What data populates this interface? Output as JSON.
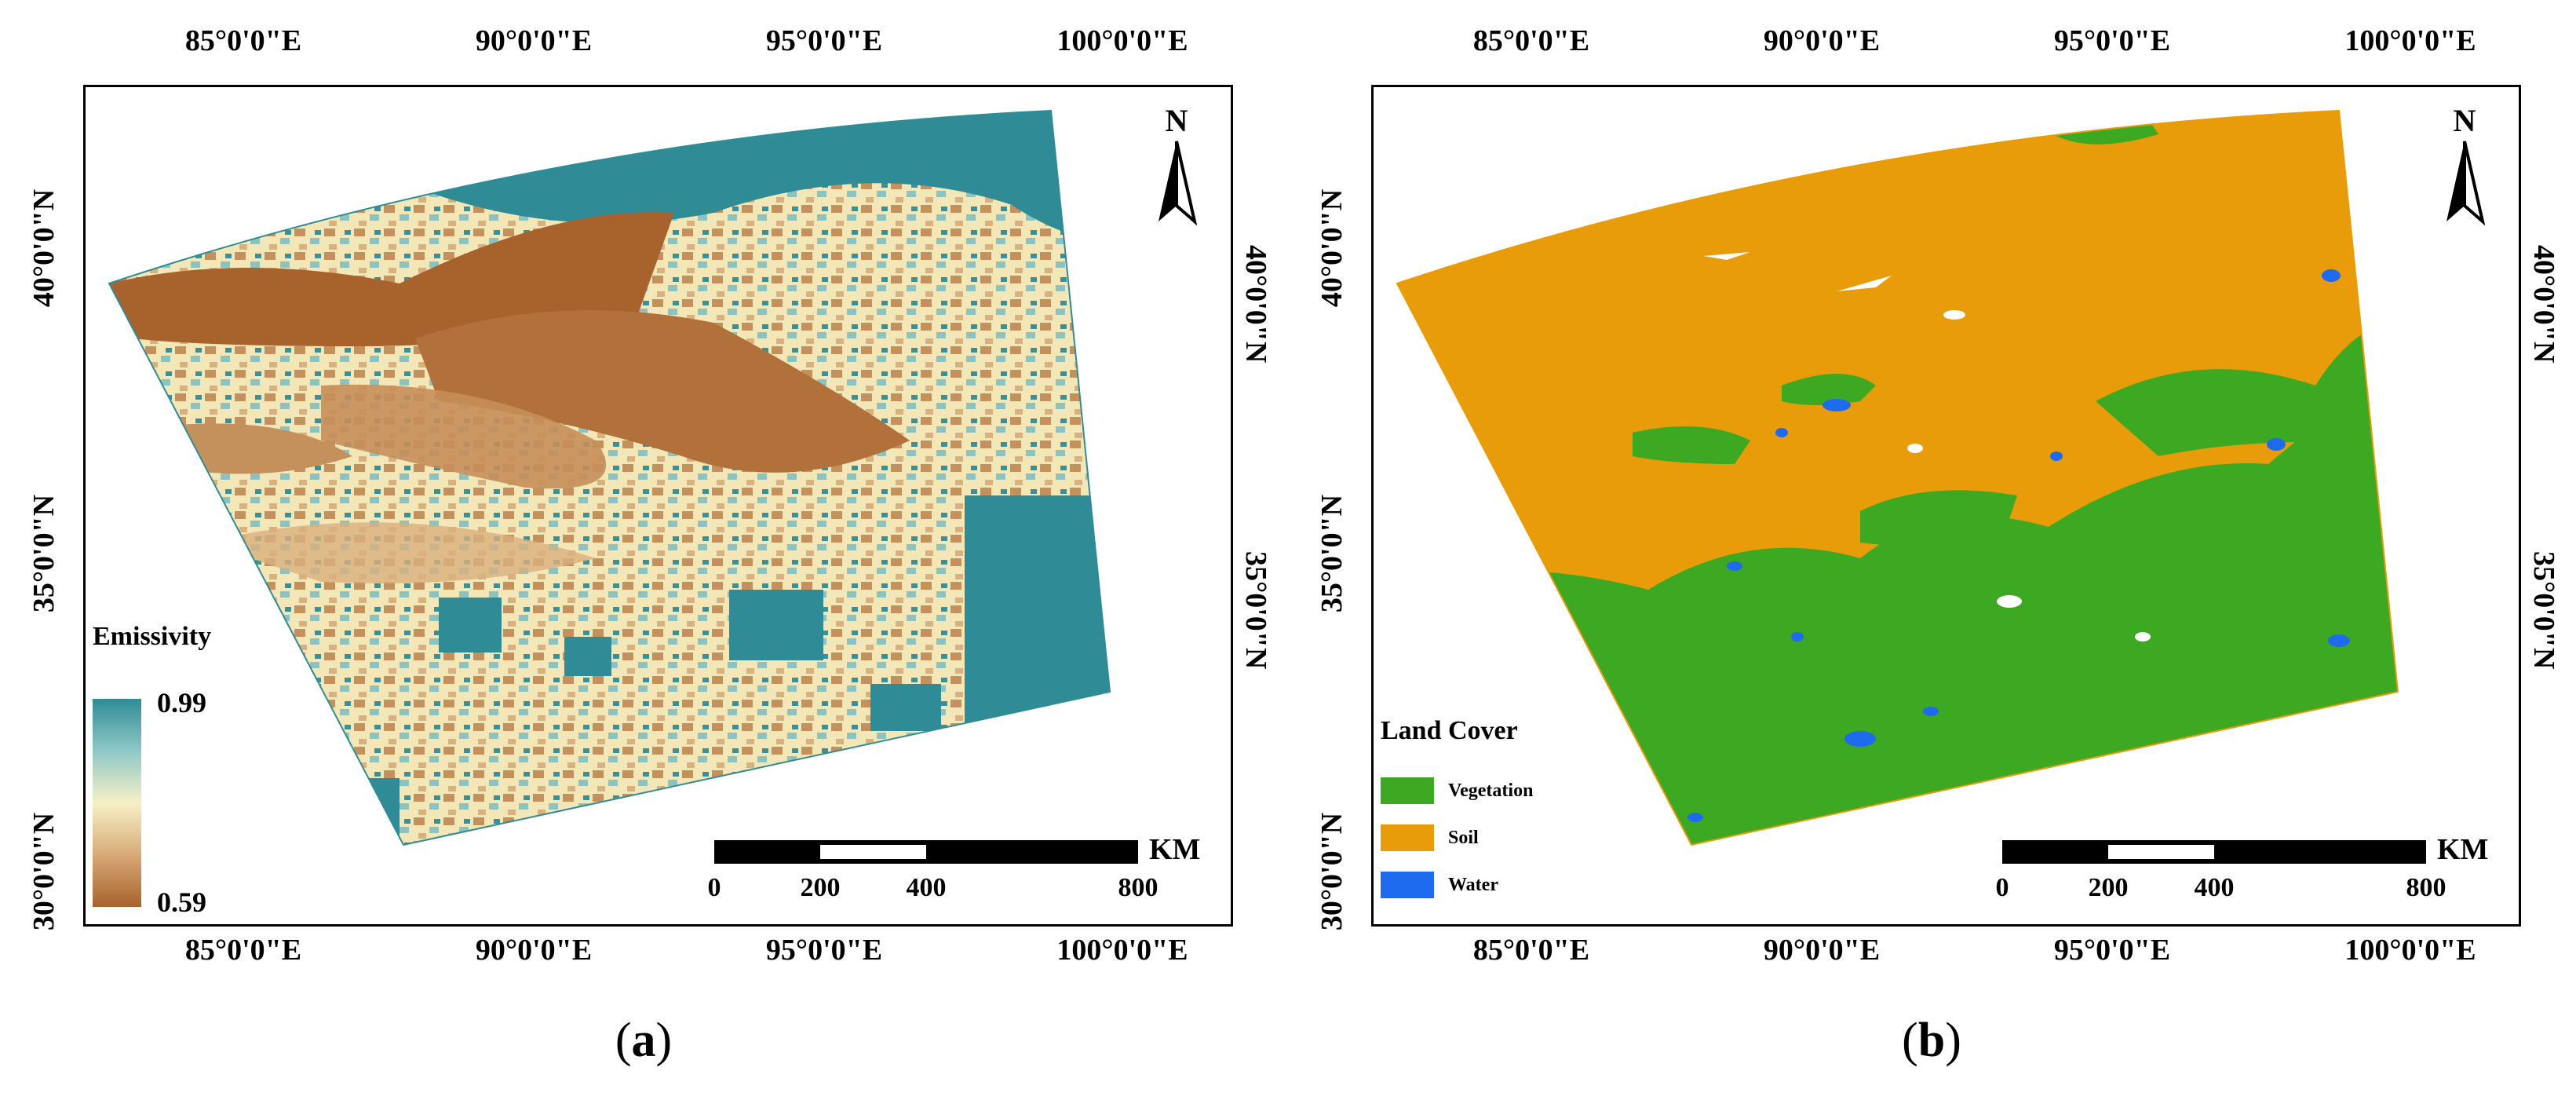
{
  "panels": [
    {
      "label": "a",
      "top_ticks": [
        "85°0'0\"E",
        "90°0'0\"E",
        "95°0'0\"E",
        "100°0'0\"E"
      ],
      "bottom_ticks": [
        "85°0'0\"E",
        "90°0'0\"E",
        "95°0'0\"E",
        "100°0'0\"E"
      ],
      "left_ticks": [
        "40°0'0\"N",
        "35°0'0\"N",
        "30°0'0\"N"
      ],
      "right_ticks": [
        "40°0'0\"N",
        "35°0'0\"N"
      ],
      "north": "N",
      "scale": {
        "labels": [
          "0",
          "200",
          "400",
          "800"
        ],
        "unit": "KM"
      },
      "legend": {
        "title": "Emissivity",
        "max": "0.99",
        "min": "0.59",
        "colors": [
          "#2f8c96",
          "#8fc8c6",
          "#f6f0c6",
          "#d8aa78",
          "#a8622c"
        ]
      }
    },
    {
      "label": "b",
      "top_ticks": [
        "85°0'0\"E",
        "90°0'0\"E",
        "95°0'0\"E",
        "100°0'0\"E"
      ],
      "bottom_ticks": [
        "85°0'0\"E",
        "90°0'0\"E",
        "95°0'0\"E",
        "100°0'0\"E"
      ],
      "left_ticks": [
        "40°0'0\"N",
        "35°0'0\"N",
        "30°0'0\"N"
      ],
      "right_ticks": [
        "40°0'0\"N",
        "35°0'0\"N"
      ],
      "north": "N",
      "scale": {
        "labels": [
          "0",
          "200",
          "400",
          "800"
        ],
        "unit": "KM"
      },
      "legend": {
        "title": "Land Cover",
        "classes": [
          {
            "name": "Vegetation",
            "color": "#3da822"
          },
          {
            "name": "Soil",
            "color": "#e89c0a"
          },
          {
            "name": "Water",
            "color": "#1e6bf0"
          }
        ]
      }
    }
  ]
}
